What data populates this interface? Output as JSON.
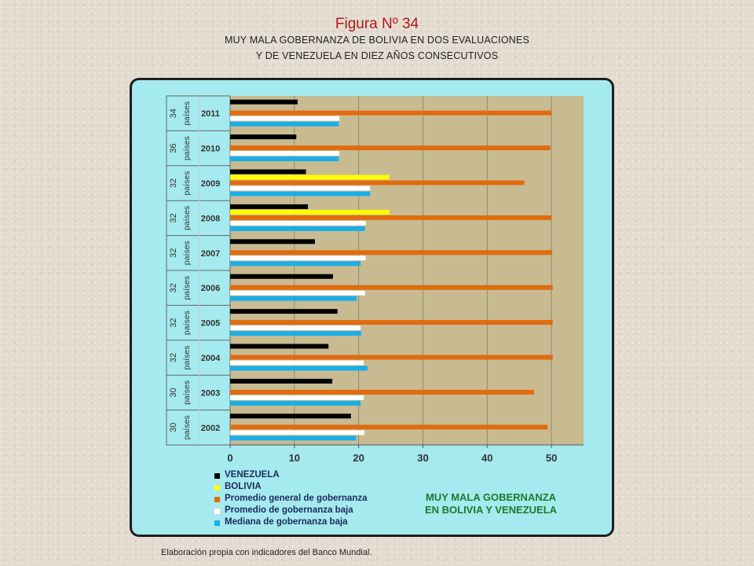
{
  "title": "Figura Nº 34",
  "subtitle_line1": "MUY MALA GOBERNANZA DE BOLIVIA EN DOS EVALUACIONES",
  "subtitle_line2": "Y DE VENEZUELA EN DIEZ AÑOS CONSECUTIVOS",
  "note_line1": "MUY MALA GOBERNANZA",
  "note_line2": "EN BOLIVIA Y VENEZUELA",
  "source": "Elaboración propia con indicadores del Banco Mundial.",
  "chart_data": {
    "type": "bar",
    "orientation": "horizontal",
    "categories": [
      "2011",
      "2010",
      "2009",
      "2008",
      "2007",
      "2006",
      "2005",
      "2004",
      "2003",
      "2002"
    ],
    "country_counts": [
      "34",
      "36",
      "32",
      "32",
      "32",
      "32",
      "32",
      "32",
      "30",
      "30"
    ],
    "count_label": "países",
    "xlim": [
      0,
      55
    ],
    "xticks": [
      "0",
      "10",
      "20",
      "30",
      "40",
      "50"
    ],
    "grid": true,
    "legend_position": "bottom-left",
    "series": [
      {
        "name": "VENEZUELA",
        "color": "#000000",
        "values": [
          10.5,
          10.3,
          11.8,
          12.1,
          13.2,
          16.0,
          16.7,
          15.3,
          15.9,
          18.8
        ]
      },
      {
        "name": "BOLIVIA",
        "color": "#ffff00",
        "values": [
          null,
          null,
          24.8,
          24.8,
          null,
          null,
          null,
          null,
          null,
          null
        ]
      },
      {
        "name": "Promedio general de gobernanza",
        "color": "#e06c10",
        "values": [
          50.0,
          49.8,
          45.8,
          50.0,
          50.1,
          50.2,
          50.2,
          50.2,
          47.3,
          49.4
        ]
      },
      {
        "name": "Promedio de gobernanza baja",
        "color": "#ffffff",
        "values": [
          17.0,
          17.0,
          21.8,
          21.1,
          21.1,
          21.0,
          20.3,
          20.8,
          20.8,
          20.9
        ]
      },
      {
        "name": "Mediana de gobernanza baja",
        "color": "#1aaee8",
        "values": [
          16.9,
          16.9,
          21.8,
          21.0,
          20.3,
          19.7,
          20.4,
          21.4,
          20.3,
          19.6
        ]
      }
    ]
  }
}
